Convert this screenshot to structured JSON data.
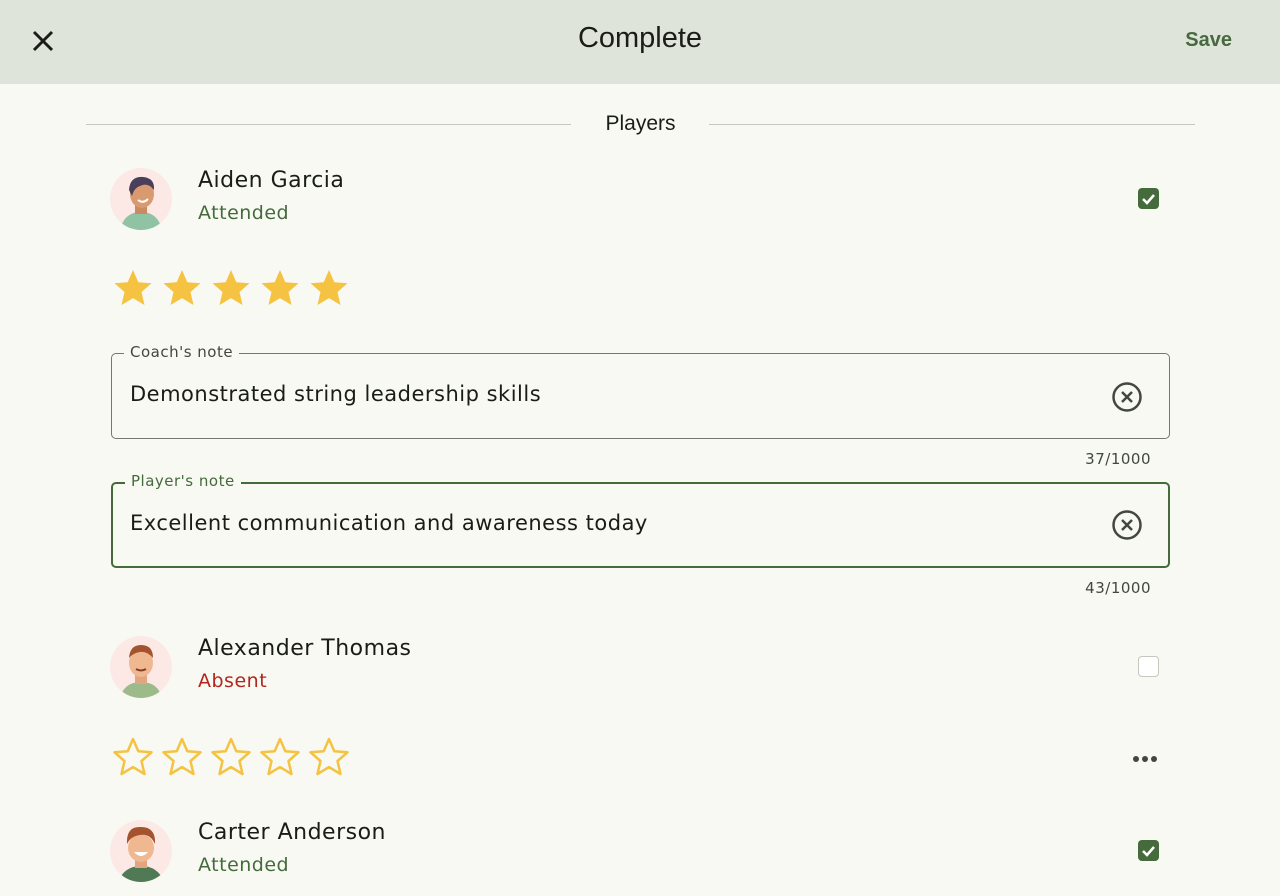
{
  "header": {
    "title": "Complete",
    "save_label": "Save",
    "close_icon": "close-icon"
  },
  "section": {
    "title": "Players"
  },
  "colors": {
    "accent": "#456a3c",
    "attended": "#456a3c",
    "absent": "#b3261e",
    "star": "#f5c242",
    "header_bg": "#dfe4da"
  },
  "players": [
    {
      "name": "Aiden Garcia",
      "status": "Attended",
      "checked": true,
      "rating": 5,
      "coach_note": {
        "label": "Coach's note",
        "value": "Demonstrated string leadership skills",
        "counter": "37/1000"
      },
      "player_note": {
        "label": "Player's note",
        "value": "Excellent communication and awareness today",
        "counter": "43/1000"
      }
    },
    {
      "name": "Alexander Thomas",
      "status": "Absent",
      "checked": false,
      "rating": 0
    },
    {
      "name": "Carter Anderson",
      "status": "Attended",
      "checked": true
    }
  ]
}
